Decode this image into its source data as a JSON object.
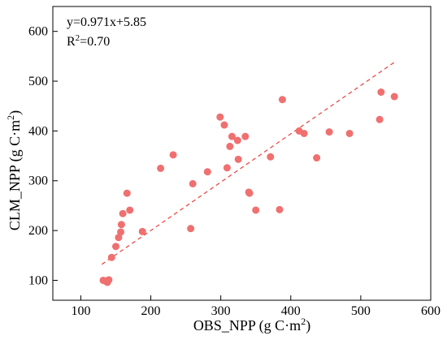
{
  "chart_data": {
    "type": "scatter",
    "xlabel": "OBS_NPP (g C·m",
    "xlabel_sup": "2",
    "xlabel_close": ")",
    "ylabel": "CLM_NPP (g C·m",
    "ylabel_sup": "2",
    "ylabel_close": ")",
    "xlim": [
      60,
      600
    ],
    "ylim": [
      60,
      650
    ],
    "xticks": [
      100,
      200,
      300,
      400,
      500,
      600
    ],
    "yticks": [
      100,
      200,
      300,
      400,
      500,
      600
    ],
    "grid": false,
    "point_color": "#f07070",
    "fit_line": {
      "equation": "y=0.971x+5.85",
      "r2_base": "R",
      "r2_sup": "2",
      "r2_value": "=0.70",
      "slope": 0.971,
      "intercept": 5.85,
      "x_range": [
        130,
        550
      ],
      "color": "#e8403a",
      "style": "dashed"
    },
    "points": [
      {
        "x": 132,
        "y": 100
      },
      {
        "x": 136,
        "y": 98
      },
      {
        "x": 138,
        "y": 96
      },
      {
        "x": 140,
        "y": 101
      },
      {
        "x": 144,
        "y": 146
      },
      {
        "x": 150,
        "y": 168
      },
      {
        "x": 154,
        "y": 186
      },
      {
        "x": 157,
        "y": 197
      },
      {
        "x": 158,
        "y": 212
      },
      {
        "x": 160,
        "y": 234
      },
      {
        "x": 166,
        "y": 275
      },
      {
        "x": 170,
        "y": 241
      },
      {
        "x": 188,
        "y": 198
      },
      {
        "x": 214,
        "y": 325
      },
      {
        "x": 232,
        "y": 352
      },
      {
        "x": 257,
        "y": 204
      },
      {
        "x": 260,
        "y": 294
      },
      {
        "x": 281,
        "y": 318
      },
      {
        "x": 299,
        "y": 428
      },
      {
        "x": 305,
        "y": 412
      },
      {
        "x": 309,
        "y": 326
      },
      {
        "x": 313,
        "y": 369
      },
      {
        "x": 316,
        "y": 389
      },
      {
        "x": 324,
        "y": 381
      },
      {
        "x": 325,
        "y": 343
      },
      {
        "x": 335,
        "y": 389
      },
      {
        "x": 340,
        "y": 277
      },
      {
        "x": 341,
        "y": 275
      },
      {
        "x": 350,
        "y": 241
      },
      {
        "x": 371,
        "y": 348
      },
      {
        "x": 384,
        "y": 242
      },
      {
        "x": 388,
        "y": 463
      },
      {
        "x": 412,
        "y": 400
      },
      {
        "x": 419,
        "y": 395
      },
      {
        "x": 437,
        "y": 346
      },
      {
        "x": 455,
        "y": 398
      },
      {
        "x": 484,
        "y": 395
      },
      {
        "x": 527,
        "y": 423
      },
      {
        "x": 529,
        "y": 478
      },
      {
        "x": 548,
        "y": 469
      }
    ]
  }
}
